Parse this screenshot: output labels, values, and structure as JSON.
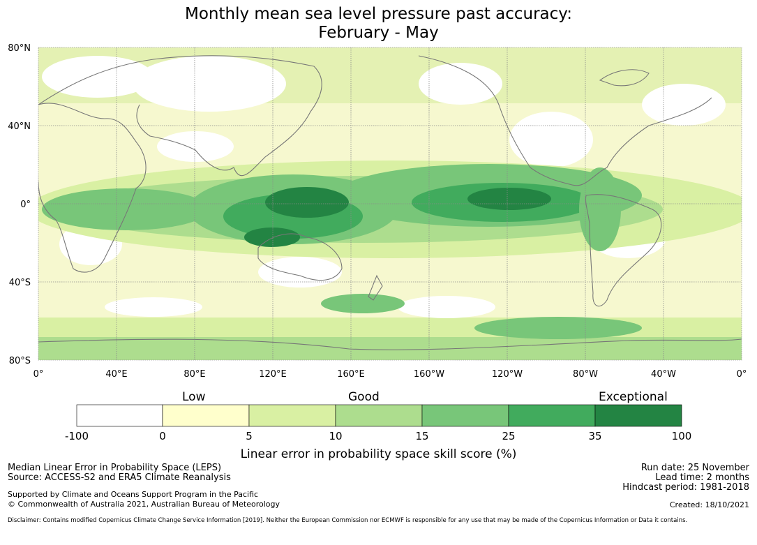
{
  "title": {
    "line1": "Monthly mean sea level pressure past accuracy:",
    "line2": "February - May"
  },
  "map": {
    "lat_labels": [
      "80°N",
      "40°N",
      "0°",
      "40°S",
      "80°S"
    ],
    "lon_labels": [
      "0°",
      "40°E",
      "80°E",
      "120°E",
      "160°E",
      "160°W",
      "120°W",
      "80°W",
      "40°W",
      "0°"
    ]
  },
  "legend": {
    "categories": [
      "Low",
      "Good",
      "Exceptional"
    ],
    "bins": [
      {
        "from": -100,
        "to": 0,
        "color": "#ffffff"
      },
      {
        "from": 0,
        "to": 5,
        "color": "#ffffcc"
      },
      {
        "from": 5,
        "to": 10,
        "color": "#d9f0a3"
      },
      {
        "from": 10,
        "to": 15,
        "color": "#addd8e"
      },
      {
        "from": 15,
        "to": 25,
        "color": "#78c679"
      },
      {
        "from": 25,
        "to": 35,
        "color": "#41ab5d"
      },
      {
        "from": 35,
        "to": 100,
        "color": "#238443"
      }
    ],
    "tick_labels": [
      "-100",
      "0",
      "5",
      "10",
      "15",
      "25",
      "35",
      "100"
    ],
    "title": "Linear error in probability space skill score (%)"
  },
  "footer": {
    "left1": "Median Linear Error in Probability Space (LEPS)",
    "left2": "Source: ACCESS-S2 and ERA5 Climate Reanalysis",
    "left3": "Supported by Climate and Oceans Support Program in the Pacific",
    "left4": "© Commonwealth of Australia 2021, Australian Bureau of Meteorology",
    "right1": "Run date: 25 November",
    "right2": "Lead time: 2 months",
    "right3": "Hindcast period: 1981-2018",
    "right4": "Created: 18/10/2021",
    "disclaimer": "Disclaimer: Contains modified Copernicus Climate Change Service Information [2019]. Neither the European Commission nor ECMWF is responsible for any use that may be made of the Copernicus Information or Data it contains."
  }
}
